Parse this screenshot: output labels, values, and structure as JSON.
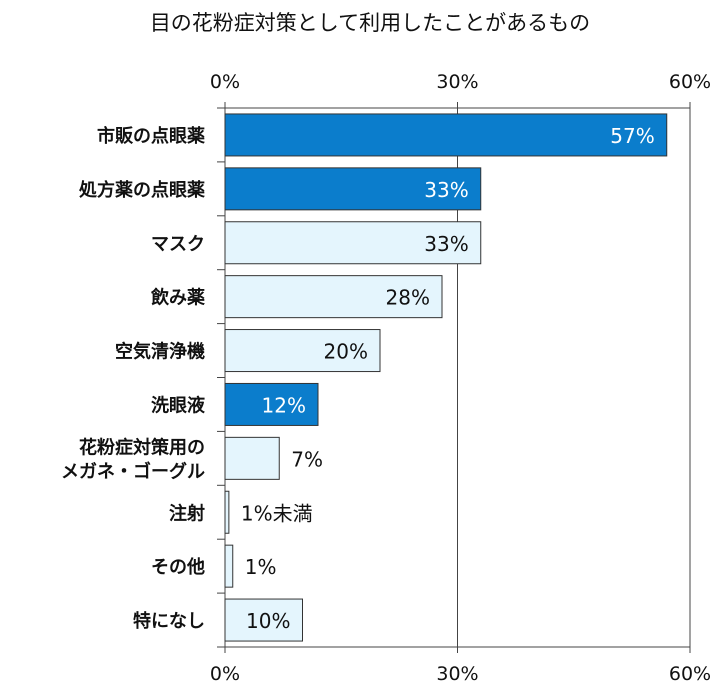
{
  "chart_data": {
    "type": "bar",
    "orientation": "horizontal",
    "title": "目の花粉症対策として利用したことがあるもの",
    "categories": [
      "市販の点眼薬",
      "処方薬の点眼薬",
      "マスク",
      "飲み薬",
      "空気清浄機",
      "洗眼液",
      "花粉症対策用の\nメガネ・ゴーグル",
      "注射",
      "その他",
      "特になし"
    ],
    "values": [
      57,
      33,
      33,
      28,
      20,
      12,
      7,
      0.5,
      1,
      10
    ],
    "data_labels": [
      "57%",
      "33%",
      "33%",
      "28%",
      "20%",
      "12%",
      "7%",
      "1%未満",
      "1%",
      "10%"
    ],
    "highlighted": [
      true,
      true,
      false,
      false,
      false,
      true,
      false,
      false,
      false,
      false
    ],
    "xlim": [
      0,
      60
    ],
    "ticks": [
      0,
      30,
      60
    ],
    "tick_labels": [
      "0%",
      "30%",
      "60%"
    ],
    "axis_position": "top-and-bottom",
    "grid": true,
    "colors": {
      "highlight": "#0b7dcc",
      "normal": "#e4f5fd",
      "border": "#333333",
      "highlight_label": "#ffffff",
      "label": "#111111"
    }
  }
}
